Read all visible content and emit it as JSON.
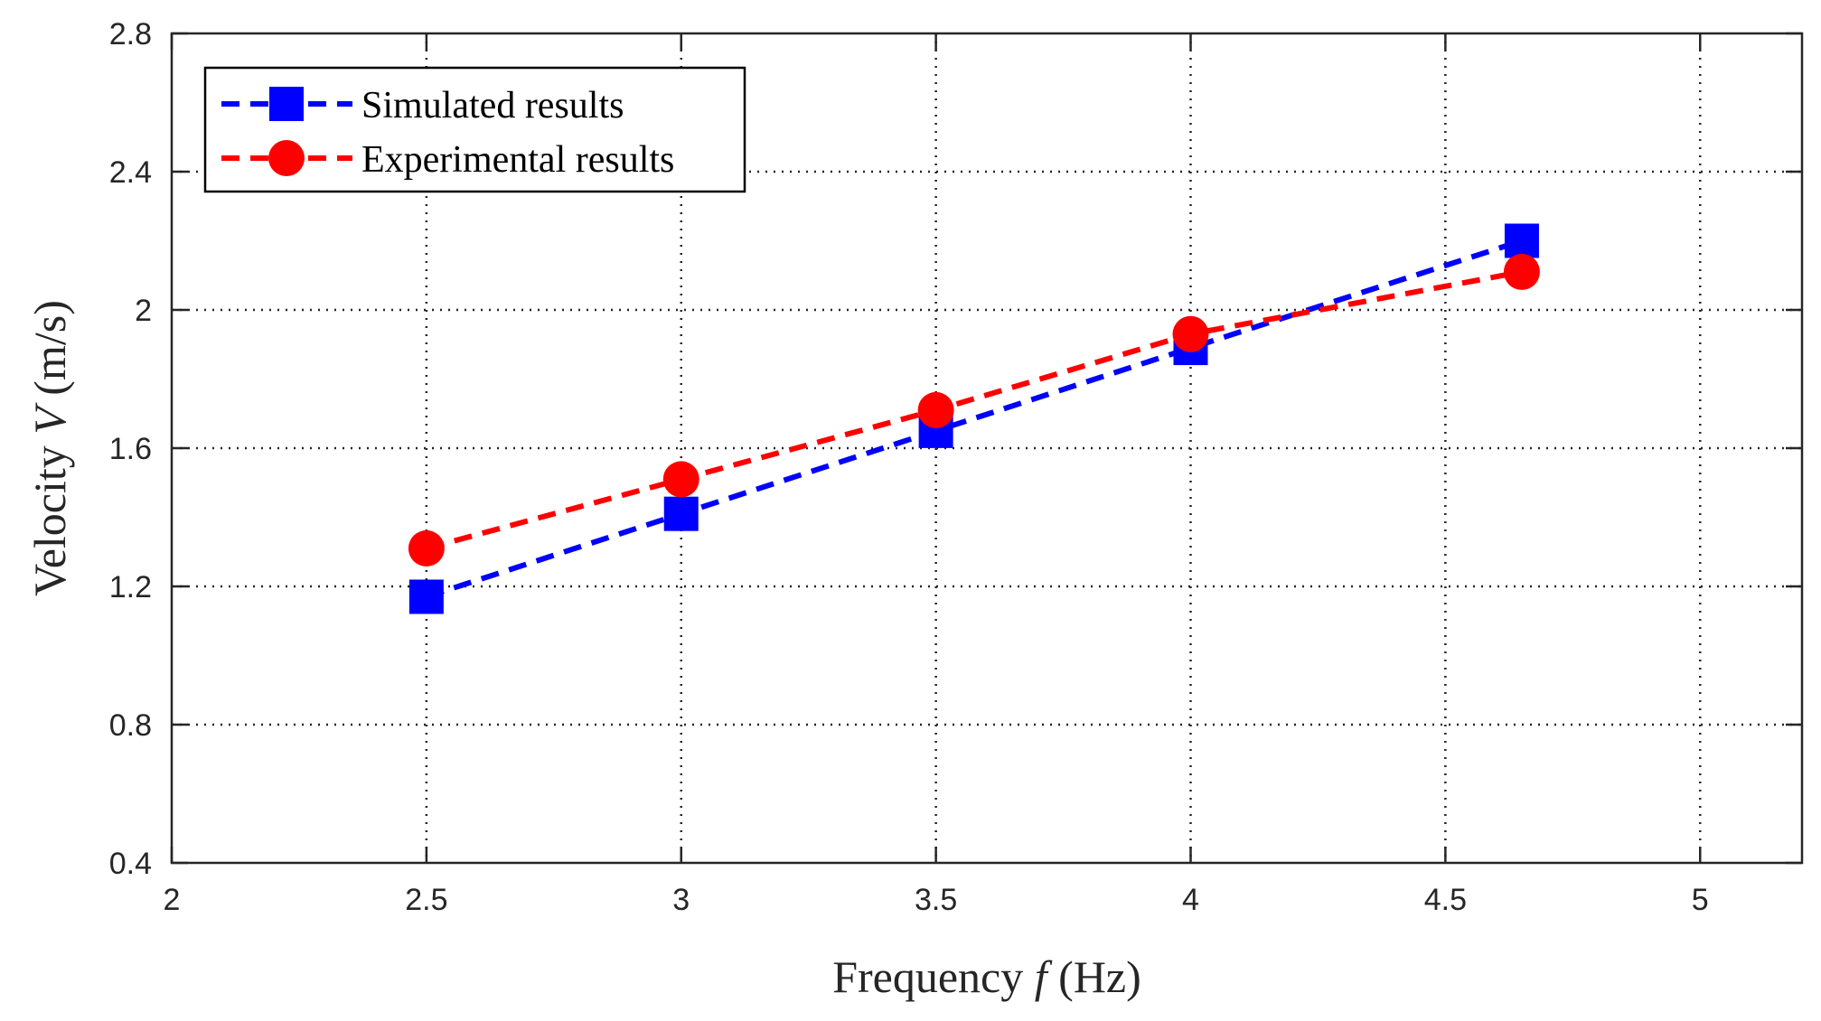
{
  "chart_data": {
    "type": "line",
    "title": "",
    "xlabel": {
      "prefix": "Frequency ",
      "variable": "f",
      "suffix": " (Hz)"
    },
    "ylabel": {
      "prefix": "Velocity  ",
      "variable": "V",
      "suffix": " (m/s)"
    },
    "xlim": [
      2,
      5.2
    ],
    "ylim": [
      0.4,
      2.8
    ],
    "xticks": [
      2,
      2.5,
      3,
      3.5,
      4,
      4.5,
      5
    ],
    "yticks": [
      0.4,
      0.8,
      1.2,
      1.6,
      2,
      2.4,
      2.8
    ],
    "xtick_labels": [
      "2",
      "2.5",
      "3",
      "3.5",
      "4",
      "4.5",
      "5"
    ],
    "ytick_labels": [
      "0.4",
      "0.8",
      "1.2",
      "1.6",
      "2",
      "2.4",
      "2.8"
    ],
    "grid": true,
    "legend_position": "top-left",
    "series": [
      {
        "name": "Simulated results",
        "marker": "square",
        "line_style": "dashed",
        "color": "#0000ff",
        "x": [
          2.5,
          3,
          3.5,
          4,
          4.65
        ],
        "y": [
          1.17,
          1.41,
          1.65,
          1.89,
          2.2
        ]
      },
      {
        "name": "Experimental results",
        "marker": "circle",
        "line_style": "dashed",
        "color": "#ff0000",
        "x": [
          2.5,
          3,
          3.5,
          4,
          4.65
        ],
        "y": [
          1.31,
          1.51,
          1.71,
          1.93,
          2.11
        ]
      }
    ]
  }
}
